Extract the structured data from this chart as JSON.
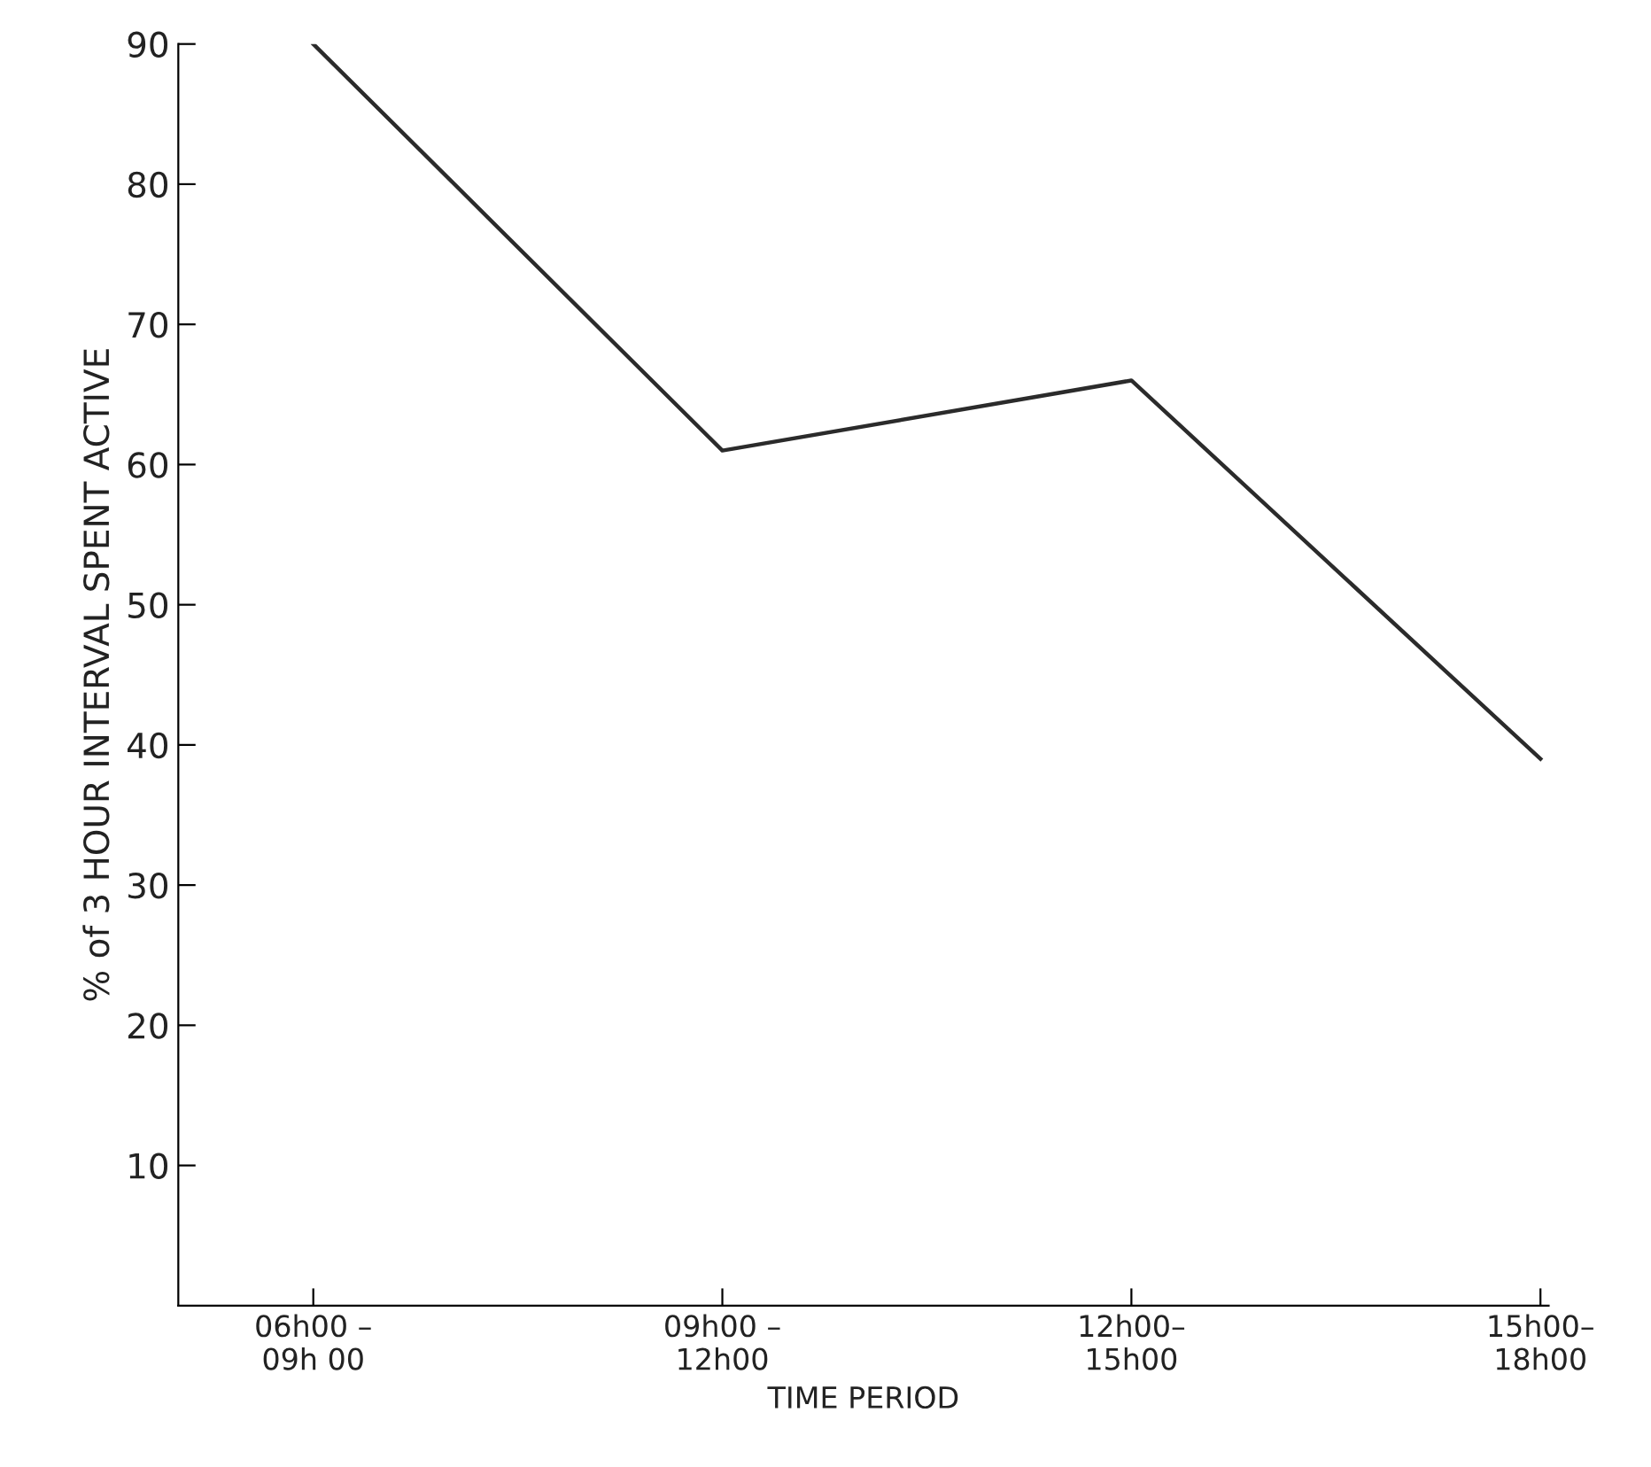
{
  "chart_data": {
    "type": "line",
    "xlabel": "TIME PERIOD",
    "ylabel": "% of 3 HOUR INTERVAL SPENT ACTIVE",
    "categories": [
      "06h00 –\n09h 00",
      "09h00 –\n12h00",
      "12h00–\n15h00",
      "15h00–\n18h00"
    ],
    "series": [
      {
        "color": "#2b2b2b",
        "values": [
          90,
          61,
          66,
          39
        ]
      }
    ],
    "ylim": [
      0,
      90
    ],
    "yticks": [
      10,
      20,
      30,
      40,
      50,
      60,
      70,
      80,
      90
    ],
    "grid": false,
    "marker": "none",
    "line_style": "solid",
    "legend": false
  }
}
